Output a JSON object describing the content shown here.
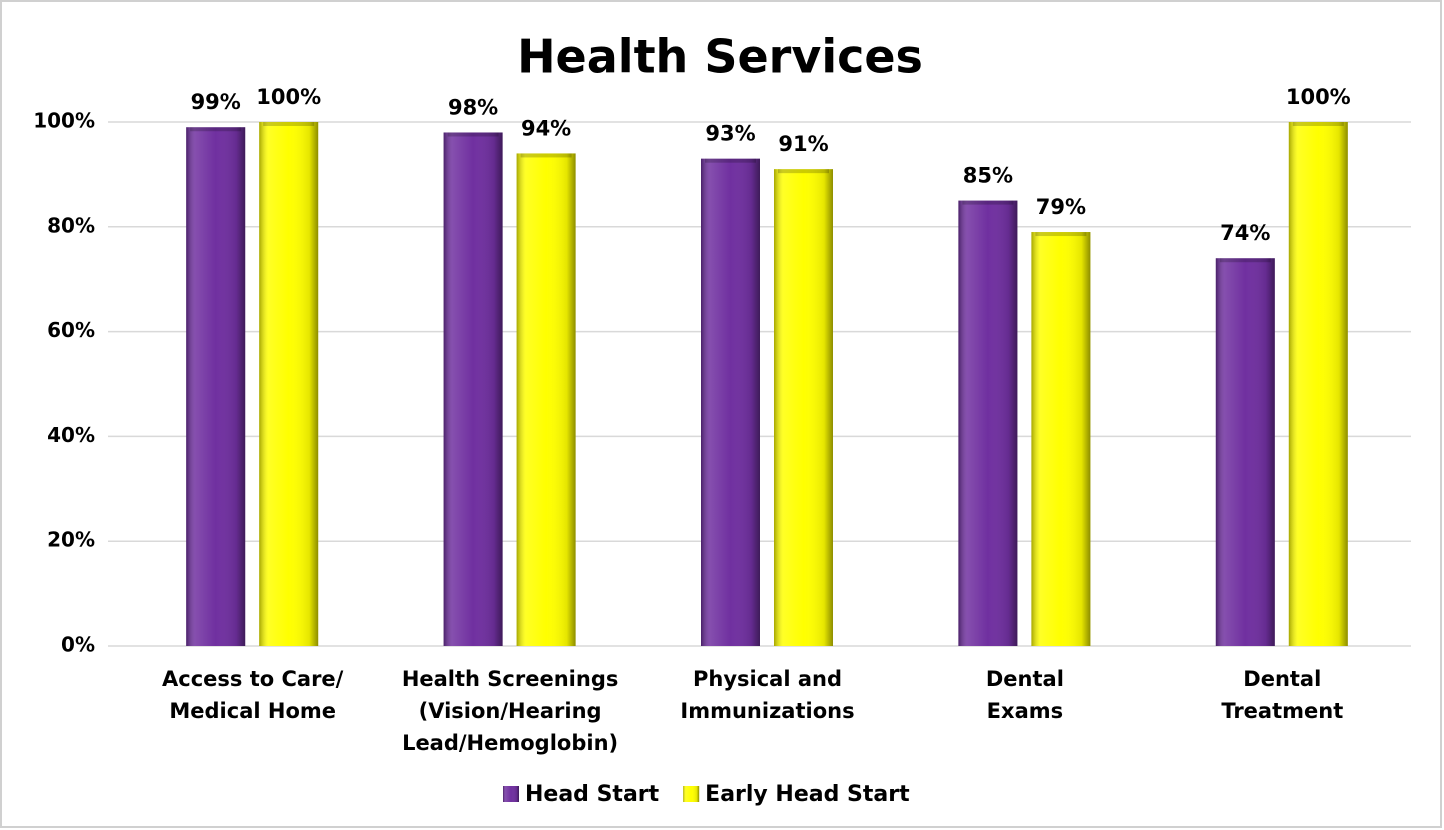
{
  "chart_data": {
    "type": "bar",
    "title": "Health Services",
    "categories": [
      [
        "Access to Care/",
        "Medical Home"
      ],
      [
        "Health Screenings",
        "(Vision/Hearing",
        "Lead/Hemoglobin)"
      ],
      [
        "Physical and",
        "Immunizations"
      ],
      [
        "Dental",
        "Exams"
      ],
      [
        "Dental",
        "Treatment"
      ]
    ],
    "series": [
      {
        "name": "Head Start",
        "color": "#7030a0",
        "values": [
          99,
          98,
          93,
          85,
          74
        ],
        "value_labels": [
          "99%",
          "98%",
          "93%",
          "85%",
          "74%"
        ]
      },
      {
        "name": "Early Head Start",
        "color": "#ffff00",
        "values": [
          100,
          94,
          91,
          79,
          100
        ],
        "value_labels": [
          "100%",
          "94%",
          "91%",
          "79%",
          "100%"
        ]
      }
    ],
    "ylim": [
      0,
      100
    ],
    "yticks": [
      {
        "value": 0,
        "label": "0%"
      },
      {
        "value": 20,
        "label": "20%"
      },
      {
        "value": 40,
        "label": "40%"
      },
      {
        "value": 60,
        "label": "60%"
      },
      {
        "value": 80,
        "label": "80%"
      },
      {
        "value": 100,
        "label": "100%"
      }
    ],
    "grid": true,
    "legend": "bottom"
  }
}
